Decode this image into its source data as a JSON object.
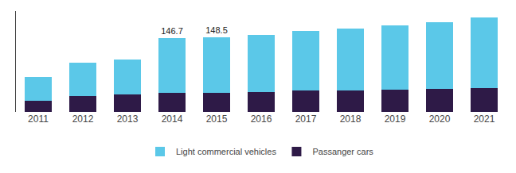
{
  "chart_data": {
    "type": "bar",
    "stacked": true,
    "categories": [
      "2011",
      "2012",
      "2013",
      "2014",
      "2015",
      "2016",
      "2017",
      "2018",
      "2019",
      "2020",
      "2021"
    ],
    "series": [
      {
        "name": "Passanger cars",
        "color": "#2e1a47",
        "values": [
          22,
          32,
          34,
          38,
          38,
          40,
          42,
          43,
          44,
          45,
          47
        ]
      },
      {
        "name": "Light commercial vehicles",
        "color": "#5bc8e8",
        "values": [
          48,
          65,
          70,
          108.7,
          110.5,
          112,
          118,
          123,
          128,
          133,
          141
        ]
      }
    ],
    "annotations": [
      {
        "category": "2014",
        "text": "146.7"
      },
      {
        "category": "2015",
        "text": "148.5"
      }
    ],
    "ylim": [
      0,
      200
    ],
    "grid": false,
    "tick_labels": "x",
    "legend": "bottom"
  }
}
